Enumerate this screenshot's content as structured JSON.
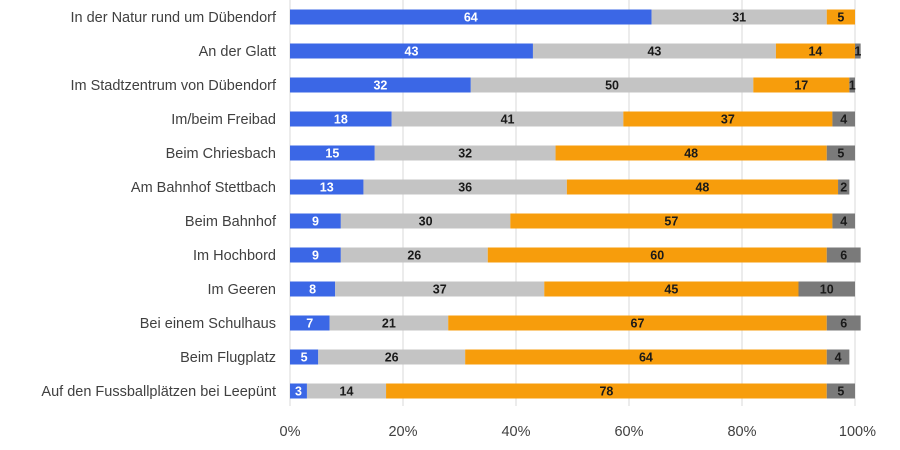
{
  "chart_data": {
    "type": "bar",
    "orientation": "horizontal",
    "stacked": true,
    "title": "",
    "xlabel": "",
    "ylabel": "",
    "xlim": [
      0,
      100
    ],
    "x_ticks": [
      "0%",
      "20%",
      "40%",
      "60%",
      "80%",
      "100%"
    ],
    "grid": true,
    "legend": "none",
    "categories": [
      "In der Natur rund um Dübendorf",
      "An der Glatt",
      "Im Stadtzentrum von Dübendorf",
      "Im/beim Freibad",
      "Beim Chriesbach",
      "Am Bahnhof Stettbach",
      "Beim Bahnhof",
      "Im Hochbord",
      "Im Geeren",
      "Bei einem Schulhaus",
      "Beim Flugplatz",
      "Auf den Fussballplätzen bei Leepünt"
    ],
    "series": [
      {
        "color": "#3b67e6",
        "label_color": "#ffffff",
        "values": [
          64,
          43,
          32,
          18,
          15,
          13,
          9,
          9,
          8,
          7,
          5,
          3
        ]
      },
      {
        "color": "#c4c4c4",
        "label_color": "#1a1a1a",
        "values": [
          31,
          43,
          50,
          41,
          32,
          36,
          30,
          26,
          37,
          21,
          26,
          14
        ]
      },
      {
        "color": "#f79d0c",
        "label_color": "#1a1a1a",
        "values": [
          5,
          14,
          17,
          37,
          48,
          48,
          57,
          60,
          45,
          67,
          64,
          78
        ]
      },
      {
        "color": "#7a7a7a",
        "label_color": "#1a1a1a",
        "values": [
          0,
          1,
          1,
          4,
          5,
          2,
          4,
          6,
          10,
          6,
          4,
          5
        ]
      }
    ]
  }
}
